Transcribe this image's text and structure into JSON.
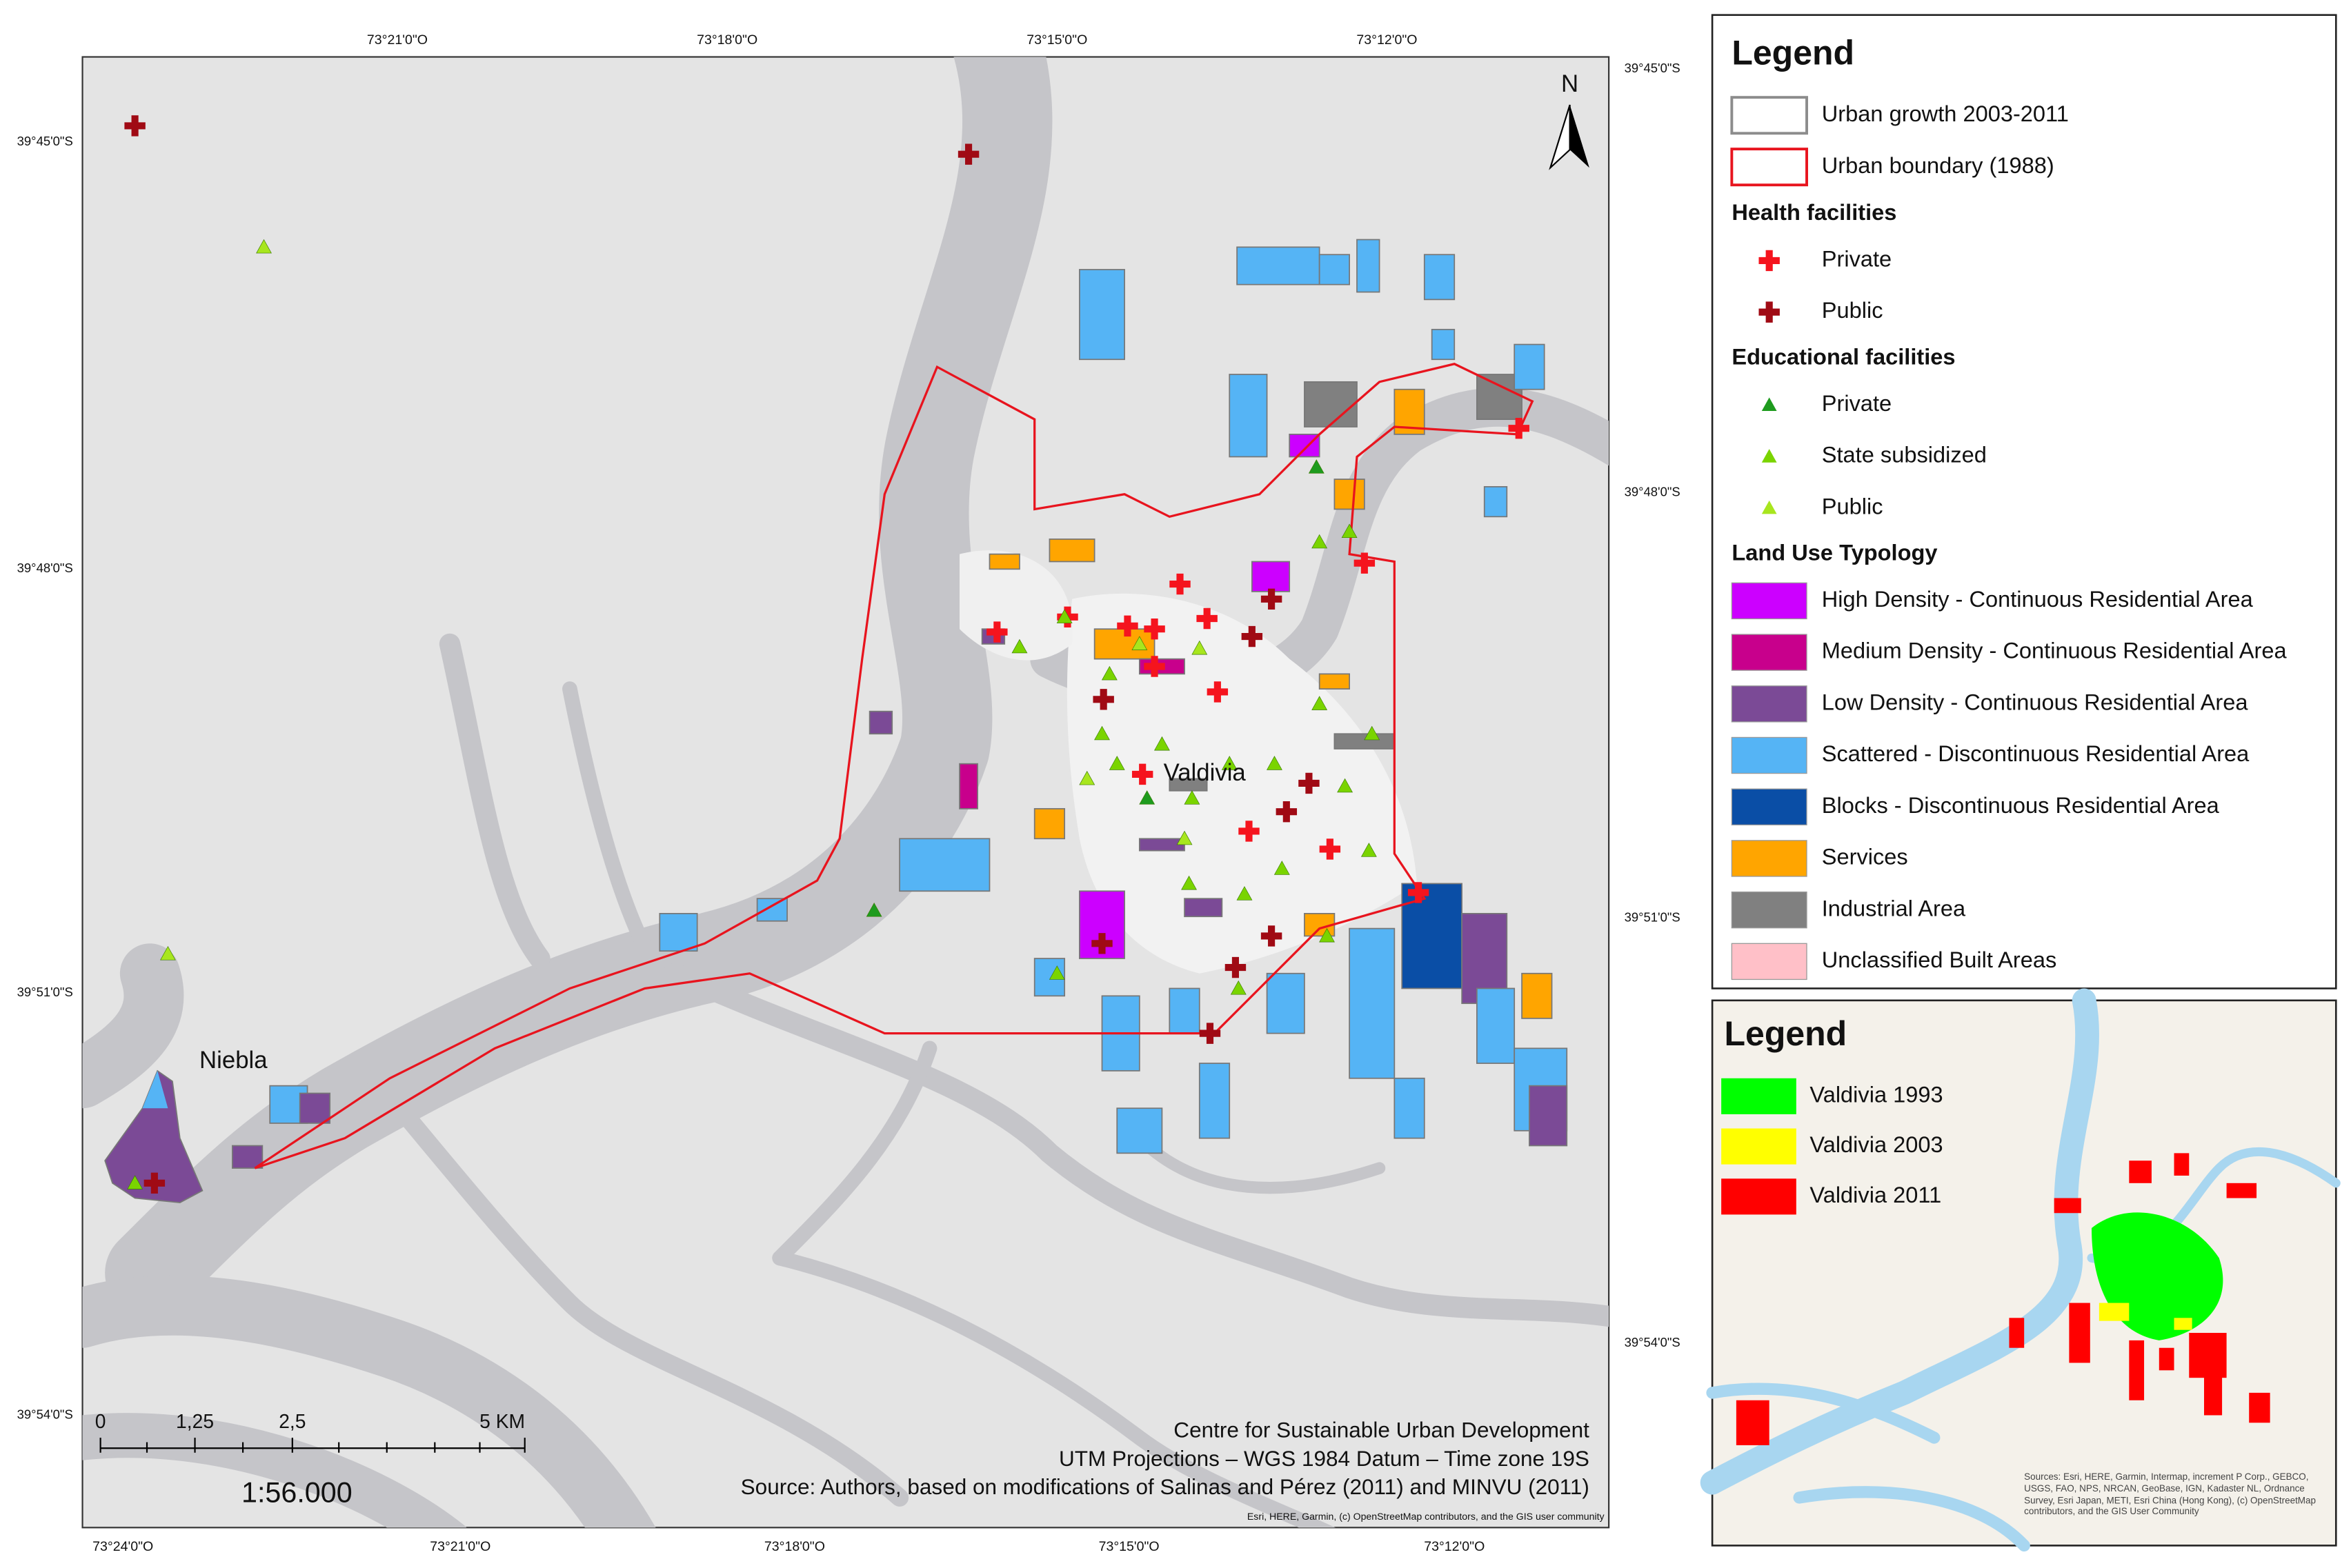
{
  "map": {
    "north_label": "N",
    "places": [
      "Valdivia",
      "Niebla"
    ],
    "top_coords": [
      "73°21'0\"O",
      "73°18'0\"O",
      "73°15'0\"O",
      "73°12'0\"O"
    ],
    "bottom_coords": [
      "73°24'0\"O",
      "73°21'0\"O",
      "73°18'0\"O",
      "73°15'0\"O",
      "73°12'0\"O"
    ],
    "left_coords": [
      "39°45'0\"S",
      "39°48'0\"S",
      "39°51'0\"S",
      "39°54'0\"S"
    ],
    "right_coords": [
      "39°45'0\"S",
      "39°48'0\"S",
      "39°51'0\"S",
      "39°54'0\"S"
    ],
    "scale_labels": [
      "0",
      "1,25",
      "2,5",
      "5 KM"
    ],
    "scale_ratio": "1:56.000",
    "credits": [
      "Centre for Sustainable Urban Development",
      "UTM Projections – WGS 1984 Datum – Time zone 19S",
      "Source: Authors, based on modifications of Salinas and Pérez (2011) and MINVU (2011)"
    ],
    "attribution": "Esri, HERE, Garmin, (c) OpenStreetMap contributors, and the GIS user community"
  },
  "legend": {
    "title": "Legend",
    "boundaries": [
      {
        "label": "Urban growth 2003-2011",
        "color": "#8c8c8c"
      },
      {
        "label": "Urban boundary (1988)",
        "color": "#e8141e"
      }
    ],
    "sections": [
      {
        "title": "Health facilities",
        "items": [
          {
            "label": "Private",
            "symbol": "cross",
            "color": "#f5141e"
          },
          {
            "label": "Public",
            "symbol": "cross",
            "color": "#a00a14"
          }
        ]
      },
      {
        "title": "Educational facilities",
        "items": [
          {
            "label": "Private",
            "symbol": "triangle",
            "color": "#1e9b1e"
          },
          {
            "label": "State subsidized",
            "symbol": "triangle",
            "color": "#7ad400"
          },
          {
            "label": "Public",
            "symbol": "triangle",
            "color": "#a8e61e"
          }
        ]
      },
      {
        "title": "Land Use Typology",
        "items": [
          {
            "label": "High Density - Continuous Residential Area",
            "symbol": "swatch",
            "color": "#cc00ff"
          },
          {
            "label": "Medium Density - Continuous Residential Area",
            "symbol": "swatch",
            "color": "#c8008c"
          },
          {
            "label": "Low Density - Continuous Residential Area",
            "symbol": "swatch",
            "color": "#7b4a96"
          },
          {
            "label": "Scattered - Discontinuous Residential Area",
            "symbol": "swatch",
            "color": "#55b4f5"
          },
          {
            "label": "Blocks - Discontinuous Residential Area",
            "symbol": "swatch",
            "color": "#0a4ea6"
          },
          {
            "label": "Services",
            "symbol": "swatch",
            "color": "#ffa500"
          },
          {
            "label": "Industrial Area",
            "symbol": "swatch",
            "color": "#808080"
          },
          {
            "label": "Unclassified Built Areas",
            "symbol": "swatch",
            "color": "#ffc0c8"
          }
        ]
      }
    ]
  },
  "inset": {
    "title": "Legend",
    "items": [
      {
        "label": "Valdivia 1993",
        "color": "#00ff00"
      },
      {
        "label": "Valdivia 2003",
        "color": "#ffff00"
      },
      {
        "label": "Valdivia 2011",
        "color": "#ff0000"
      }
    ],
    "attribution": "Sources: Esri, HERE, Garmin, Intermap, increment P Corp., GEBCO, USGS, FAO, NPS, NRCAN, GeoBase, IGN, Kadaster NL, Ordnance Survey, Esri Japan, METI, Esri China (Hong Kong), (c) OpenStreetMap contributors, and the GIS User Community"
  }
}
